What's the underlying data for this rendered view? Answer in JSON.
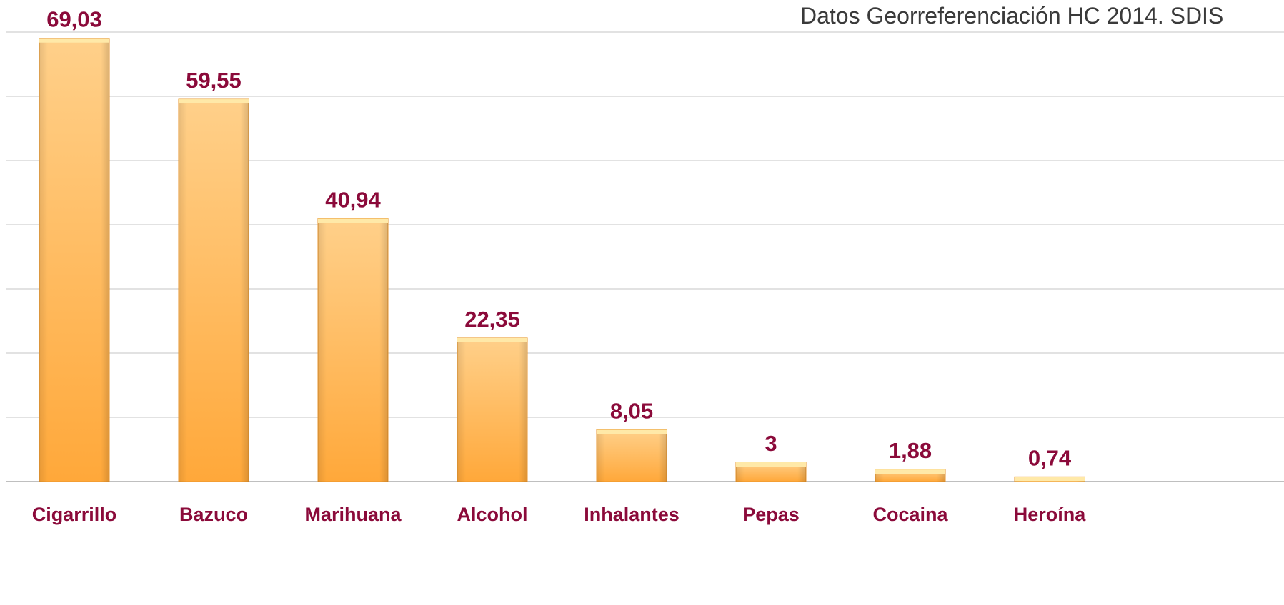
{
  "source_note": "Datos Georreferenciación HC 2014. SDIS",
  "colors": {
    "bar_top": "#FFD08A",
    "bar_bottom": "#FFA83A",
    "bar_cap": "#FFE9A8",
    "label": "#8B0A3A",
    "grid": "#D9D9D9",
    "axis": "#BFBFBF"
  },
  "chart_data": {
    "type": "bar",
    "categories": [
      "Cigarrillo",
      "Bazuco",
      "Marihuana",
      "Alcohol",
      "Inhalantes",
      "Pepas",
      "Cocaina",
      "Heroína"
    ],
    "values": [
      69.03,
      59.55,
      40.94,
      22.35,
      8.05,
      3,
      1.88,
      0.74
    ],
    "value_labels": [
      "69,03",
      "59,55",
      "40,94",
      "22,35",
      "8,05",
      "3",
      "1,88",
      "0,74"
    ],
    "ylim": [
      0,
      70
    ],
    "grid": true,
    "legend": "none"
  }
}
